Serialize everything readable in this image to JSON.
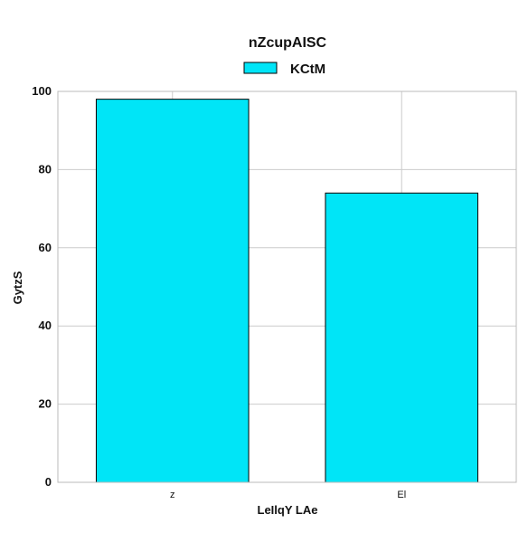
{
  "chart_data": {
    "type": "bar",
    "title": "nZcupAISC",
    "xlabel": "LeIlqY LAe",
    "ylabel": "GytzS",
    "categories": [
      "z",
      "El"
    ],
    "series": [
      {
        "name": "KCtM",
        "values": [
          98,
          74
        ],
        "color": "#00e5f7"
      }
    ],
    "ylim": [
      0,
      100
    ],
    "yticks": [
      0,
      20,
      40,
      60,
      80,
      100
    ],
    "grid": true,
    "legend_position": "top-center"
  }
}
